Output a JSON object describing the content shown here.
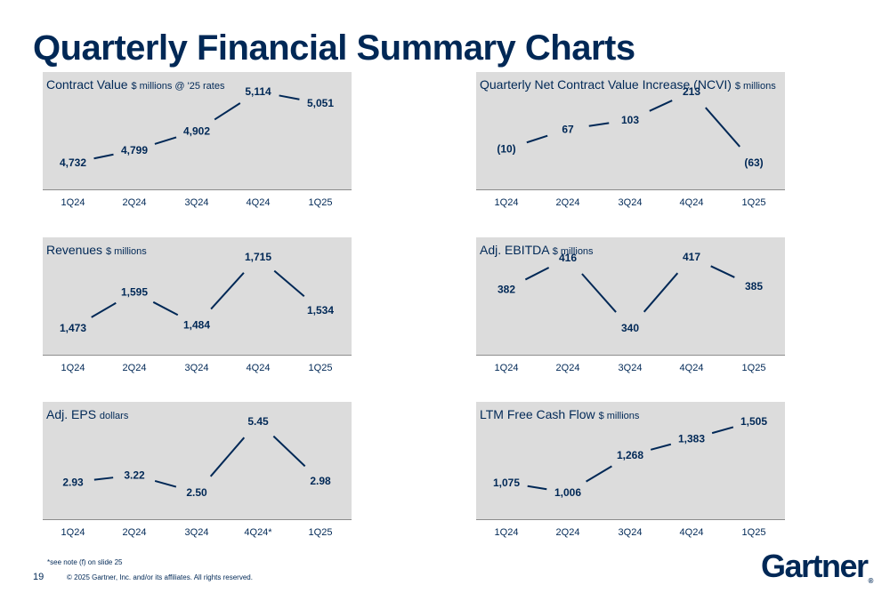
{
  "page": {
    "title": "Quarterly Financial Summary Charts",
    "footnote": "*see note (f) on slide 25",
    "page_number": "19",
    "copyright": "© 2025 Gartner, Inc. and/or its affiliates. All rights reserved.",
    "logo_text": "Gartner",
    "logo_mark": "®"
  },
  "colors": {
    "line": "#002856",
    "plot_bg": "#dcdcdc",
    "text": "#002856",
    "axis_text": "#002856"
  },
  "chart_data": [
    {
      "type": "line",
      "title": "Contract Value",
      "unit": "$ millions @ '25 rates",
      "categories": [
        "1Q24",
        "2Q24",
        "3Q24",
        "4Q24",
        "1Q25"
      ],
      "values": [
        4732,
        4799,
        4902,
        5114,
        5051
      ],
      "labels": [
        "4,732",
        "4,799",
        "4,902",
        "5,114",
        "5,051"
      ]
    },
    {
      "type": "line",
      "title": "Quarterly Net Contract Value Increase (NCVI)",
      "unit": "$ millions",
      "categories": [
        "1Q24",
        "2Q24",
        "3Q24",
        "4Q24",
        "1Q25"
      ],
      "values": [
        -10,
        67,
        103,
        213,
        -63
      ],
      "labels": [
        "(10)",
        "67",
        "103",
        "213",
        "(63)"
      ]
    },
    {
      "type": "line",
      "title": "Revenues",
      "unit": "$ millions",
      "categories": [
        "1Q24",
        "2Q24",
        "3Q24",
        "4Q24",
        "1Q25"
      ],
      "values": [
        1473,
        1595,
        1484,
        1715,
        1534
      ],
      "labels": [
        "1,473",
        "1,595",
        "1,484",
        "1,715",
        "1,534"
      ]
    },
    {
      "type": "line",
      "title": "Adj. EBITDA",
      "unit": "$ millions",
      "categories": [
        "1Q24",
        "2Q24",
        "3Q24",
        "4Q24",
        "1Q25"
      ],
      "values": [
        382,
        416,
        340,
        417,
        385
      ],
      "labels": [
        "382",
        "416",
        "340",
        "417",
        "385"
      ]
    },
    {
      "type": "line",
      "title": "Adj. EPS",
      "unit": "dollars",
      "categories": [
        "1Q24",
        "2Q24",
        "3Q24",
        "4Q24*",
        "1Q25"
      ],
      "values": [
        2.93,
        3.22,
        2.5,
        5.45,
        2.98
      ],
      "labels": [
        "2.93",
        "3.22",
        "2.50",
        "5.45",
        "2.98"
      ]
    },
    {
      "type": "line",
      "title": "LTM Free Cash Flow",
      "unit": "$ millions",
      "categories": [
        "1Q24",
        "2Q24",
        "3Q24",
        "4Q24",
        "1Q25"
      ],
      "values": [
        1075,
        1006,
        1268,
        1383,
        1505
      ],
      "labels": [
        "1,075",
        "1,006",
        "1,268",
        "1,383",
        "1,505"
      ]
    }
  ]
}
